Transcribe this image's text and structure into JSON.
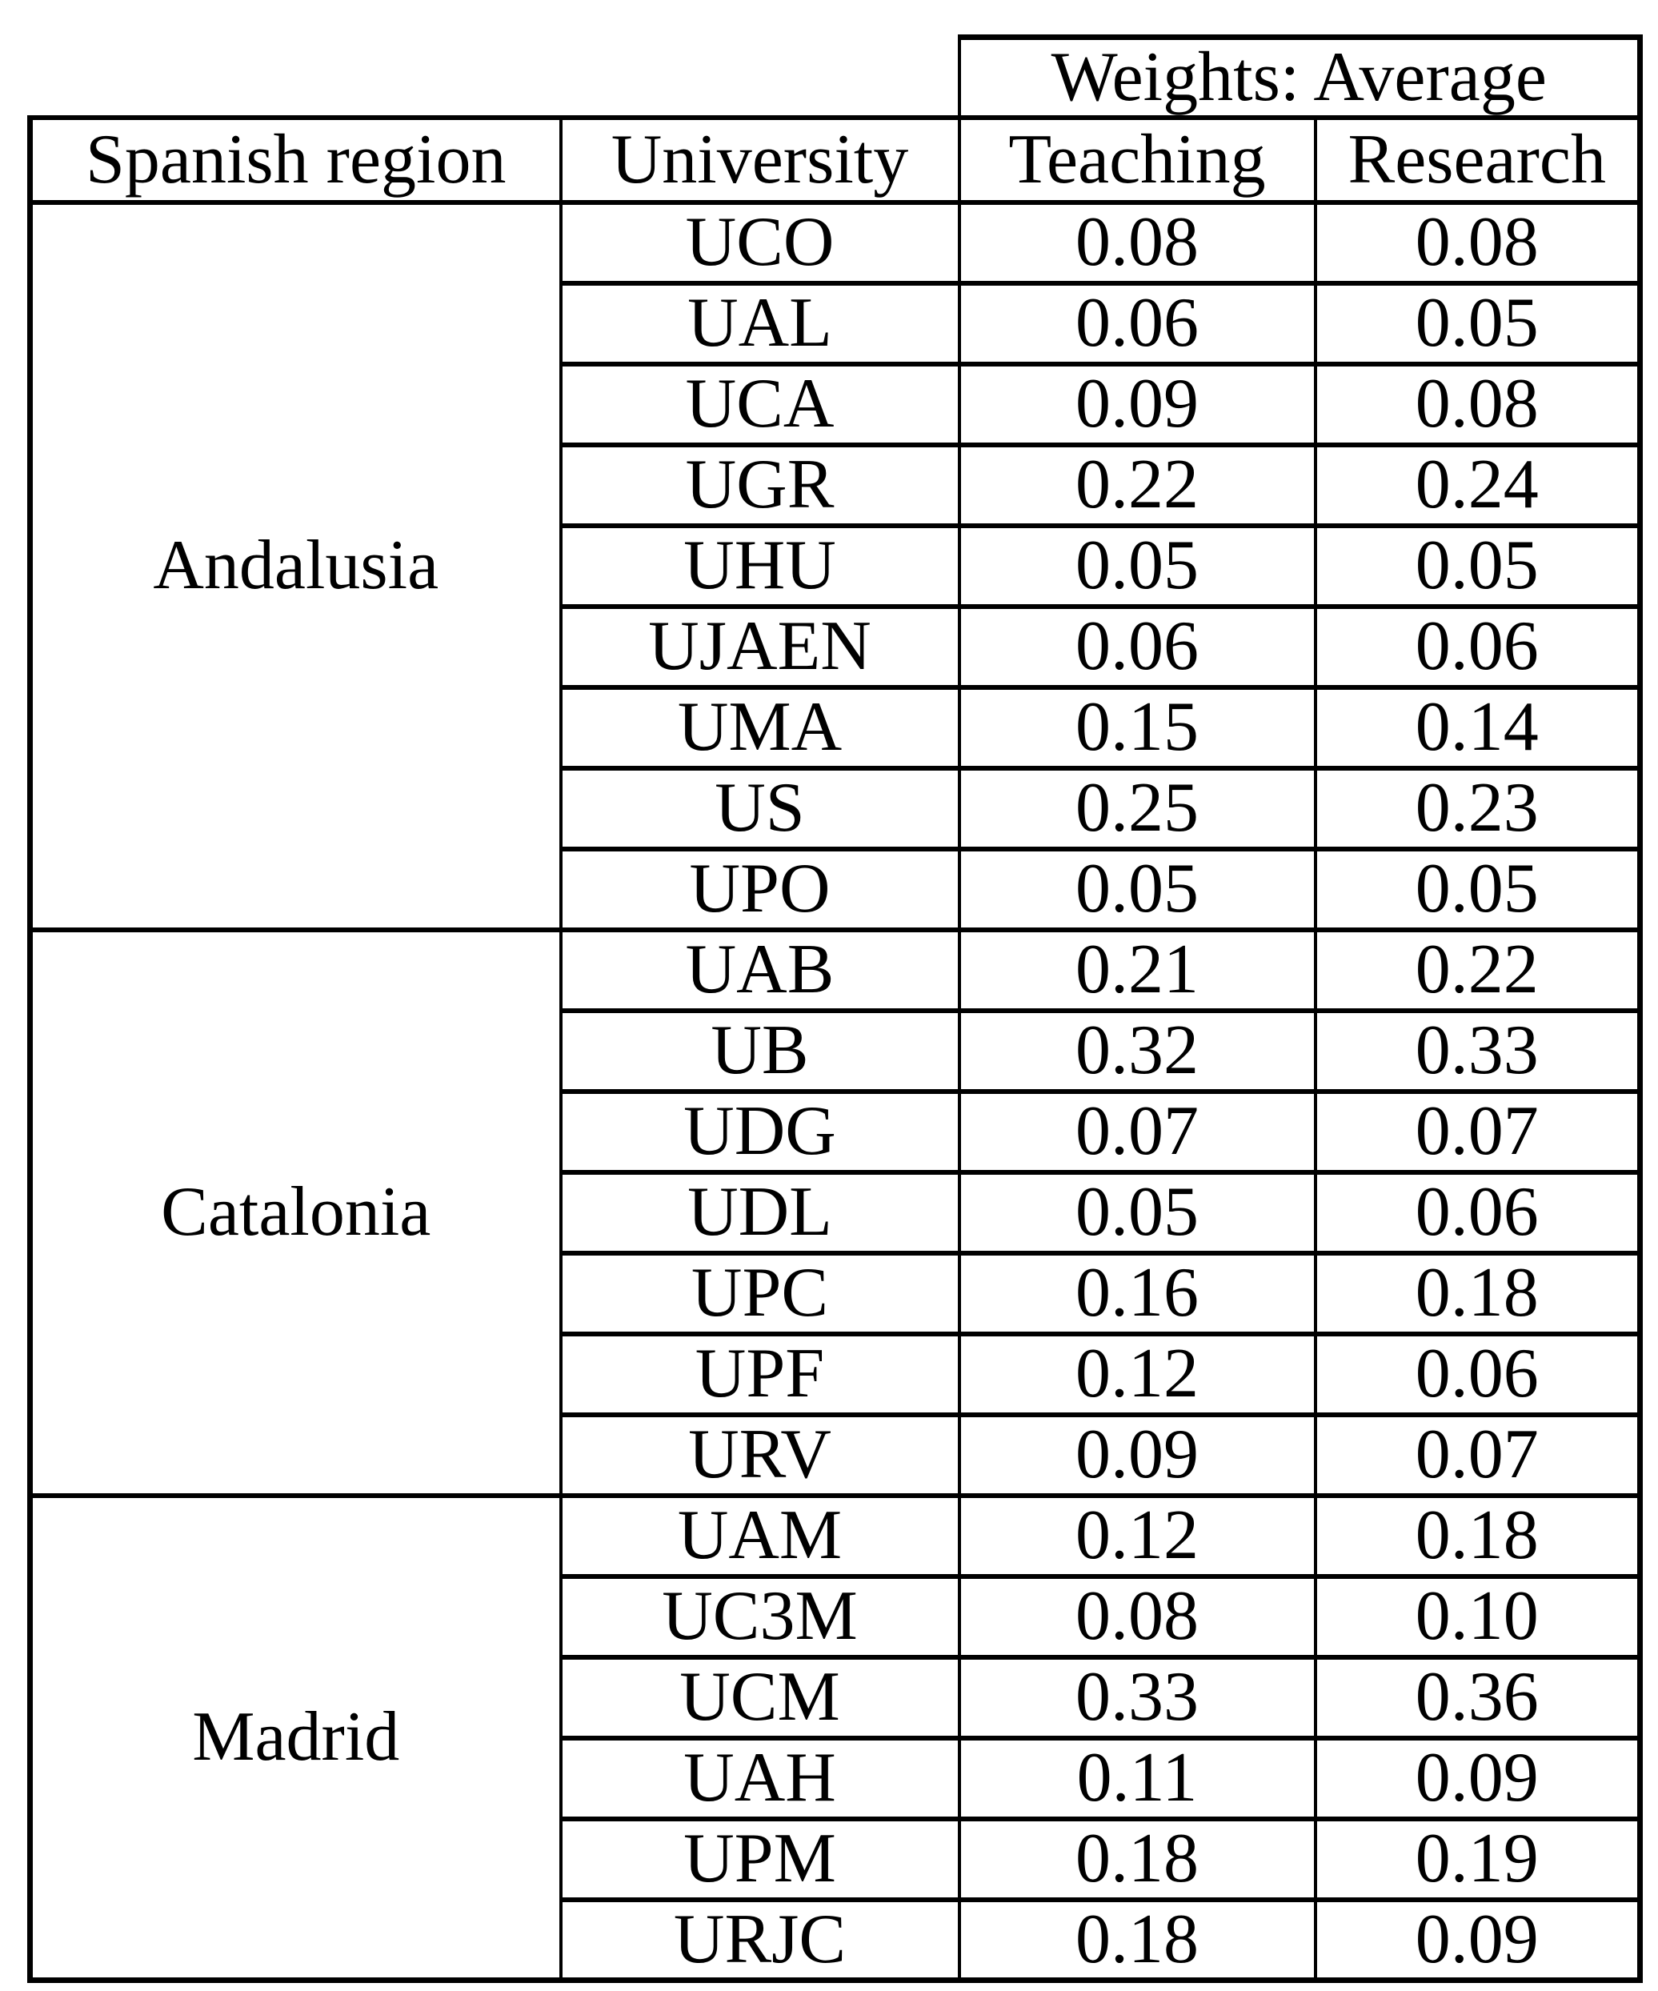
{
  "table": {
    "top_header": {
      "weights_label": "Weights: Average"
    },
    "columns": {
      "region": "Spanish region",
      "university": "University",
      "teaching": "Teaching",
      "research": "Research"
    },
    "groups": [
      {
        "region": "Andalusia",
        "rows": [
          {
            "university": "UCO",
            "teaching": "0.08",
            "research": "0.08"
          },
          {
            "university": "UAL",
            "teaching": "0.06",
            "research": "0.05"
          },
          {
            "university": "UCA",
            "teaching": "0.09",
            "research": "0.08"
          },
          {
            "university": "UGR",
            "teaching": "0.22",
            "research": "0.24"
          },
          {
            "university": "UHU",
            "teaching": "0.05",
            "research": "0.05"
          },
          {
            "university": "UJAEN",
            "teaching": "0.06",
            "research": "0.06"
          },
          {
            "university": "UMA",
            "teaching": "0.15",
            "research": "0.14"
          },
          {
            "university": "US",
            "teaching": "0.25",
            "research": "0.23"
          },
          {
            "university": "UPO",
            "teaching": "0.05",
            "research": "0.05"
          }
        ]
      },
      {
        "region": "Catalonia",
        "rows": [
          {
            "university": "UAB",
            "teaching": "0.21",
            "research": "0.22"
          },
          {
            "university": "UB",
            "teaching": "0.32",
            "research": "0.33"
          },
          {
            "university": "UDG",
            "teaching": "0.07",
            "research": "0.07"
          },
          {
            "university": "UDL",
            "teaching": "0.05",
            "research": "0.06"
          },
          {
            "university": "UPC",
            "teaching": "0.16",
            "research": "0.18"
          },
          {
            "university": "UPF",
            "teaching": "0.12",
            "research": "0.06"
          },
          {
            "university": "URV",
            "teaching": "0.09",
            "research": "0.07"
          }
        ]
      },
      {
        "region": "Madrid",
        "rows": [
          {
            "university": "UAM",
            "teaching": "0.12",
            "research": "0.18"
          },
          {
            "university": "UC3M",
            "teaching": "0.08",
            "research": "0.10"
          },
          {
            "university": "UCM",
            "teaching": "0.33",
            "research": "0.36"
          },
          {
            "university": "UAH",
            "teaching": "0.11",
            "research": "0.09"
          },
          {
            "university": "UPM",
            "teaching": "0.18",
            "research": "0.19"
          },
          {
            "university": "URJC",
            "teaching": "0.18",
            "research": "0.09"
          }
        ]
      }
    ]
  }
}
